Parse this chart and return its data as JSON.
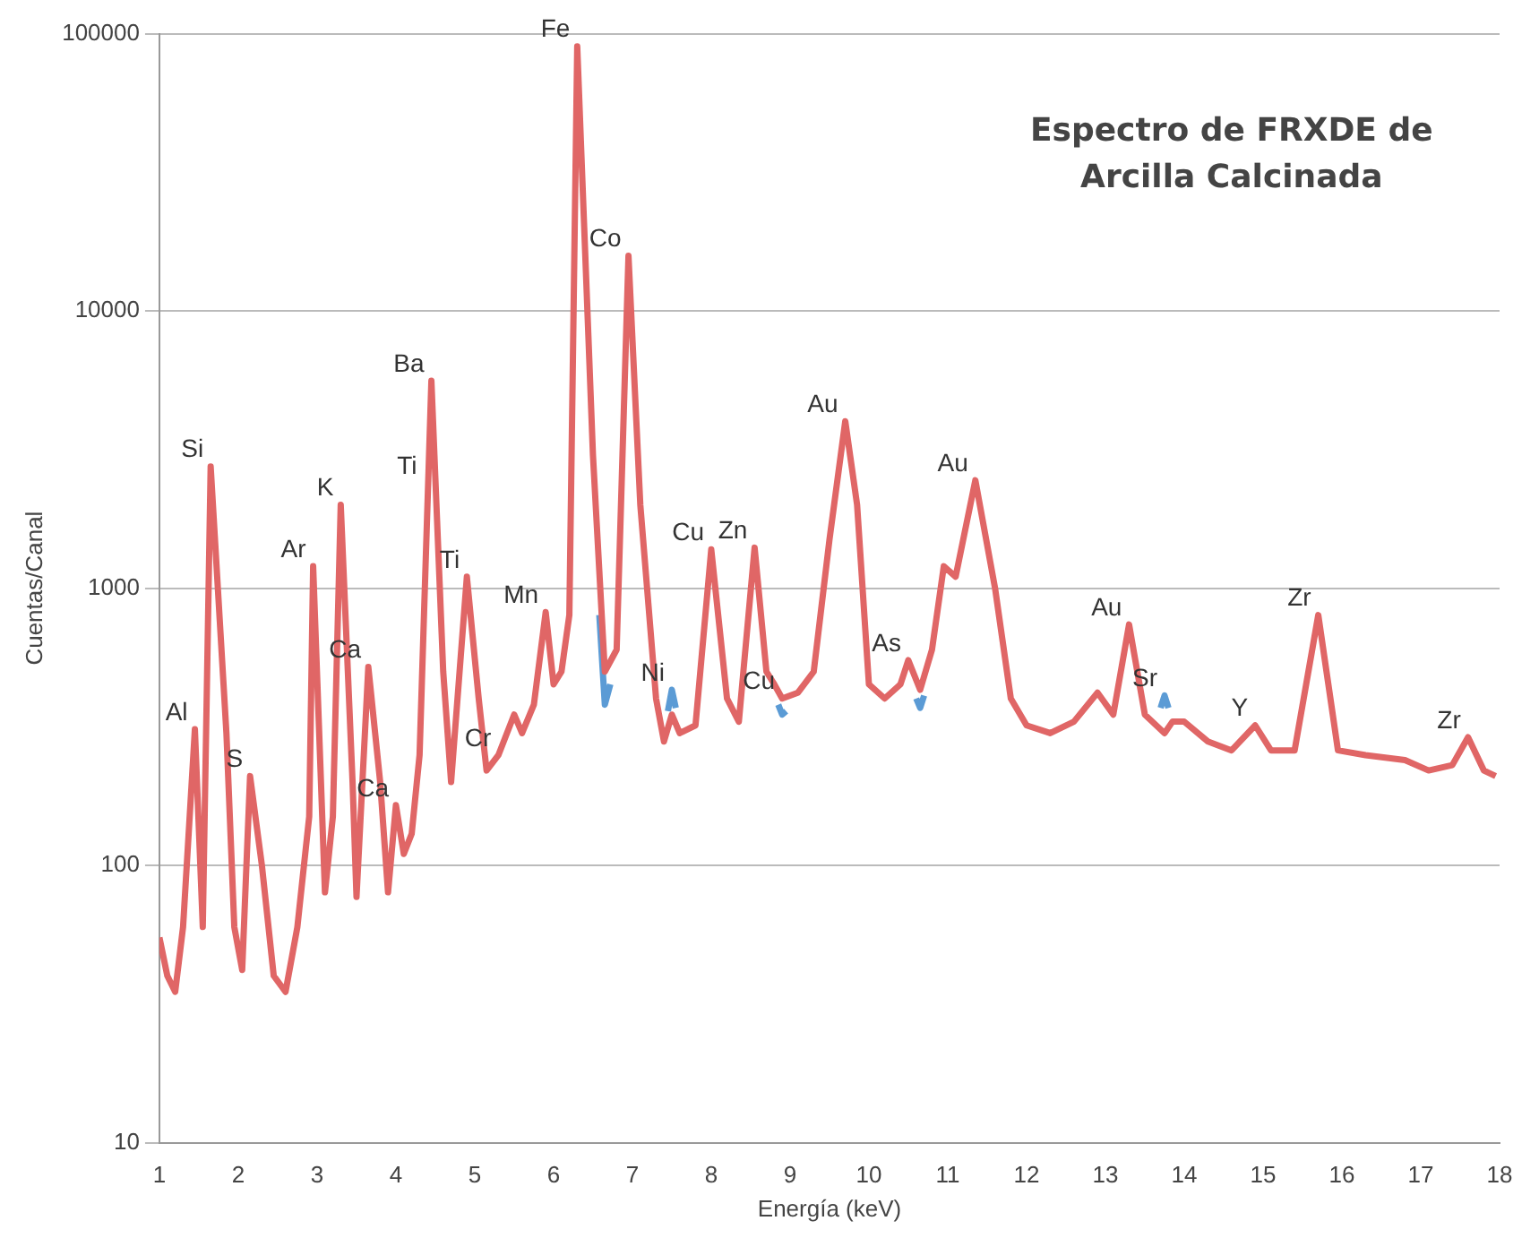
{
  "chart_data": {
    "type": "line",
    "title": "Espectro de FRXDE de\nArcilla Calcinada",
    "xlabel": "Energía (keV)",
    "ylabel": "Cuentas/Canal",
    "log": "y",
    "grid": "y",
    "legend": false,
    "marker": "none",
    "line_style": "solid",
    "xlim": [
      1,
      18
    ],
    "xticks": [
      1,
      2,
      3,
      4,
      5,
      6,
      7,
      8,
      9,
      10,
      11,
      12,
      13,
      14,
      15,
      16,
      17,
      18
    ],
    "ylim": [
      10,
      100000
    ],
    "yticks": [
      10,
      100,
      1000,
      10000,
      100000
    ],
    "x": [
      1.0,
      1.1,
      1.2,
      1.3,
      1.45,
      1.55,
      1.65,
      1.85,
      1.95,
      2.05,
      2.15,
      2.3,
      2.45,
      2.6,
      2.75,
      2.9,
      2.95,
      3.1,
      3.2,
      3.3,
      3.45,
      3.5,
      3.65,
      3.8,
      3.9,
      4.0,
      4.1,
      4.2,
      4.3,
      4.45,
      4.6,
      4.7,
      4.9,
      5.05,
      5.15,
      5.3,
      5.5,
      5.6,
      5.75,
      5.9,
      6.0,
      6.1,
      6.2,
      6.3,
      6.5,
      6.65,
      6.8,
      6.95,
      7.1,
      7.3,
      7.4,
      7.5,
      7.6,
      7.8,
      8.0,
      8.2,
      8.35,
      8.55,
      8.7,
      8.8,
      8.9,
      9.1,
      9.3,
      9.5,
      9.7,
      9.85,
      10.0,
      10.2,
      10.4,
      10.5,
      10.65,
      10.8,
      10.95,
      11.1,
      11.35,
      11.6,
      11.8,
      12.0,
      12.3,
      12.6,
      12.9,
      13.1,
      13.3,
      13.5,
      13.75,
      13.85,
      14.0,
      14.3,
      14.6,
      14.9,
      15.1,
      15.4,
      15.7,
      15.95,
      16.3,
      16.8,
      17.1,
      17.4,
      17.6,
      17.8,
      17.95
    ],
    "series": [
      {
        "color": "#5b9bd5",
        "x": [
          6.58,
          6.65,
          6.72,
          6.9,
          7.45,
          7.5,
          7.55,
          7.7,
          8.85,
          8.9,
          8.95,
          9.5,
          10.6,
          10.65,
          10.7,
          12,
          13.7,
          13.75,
          13.8
        ],
        "values": [
          800,
          380,
          450,
          null,
          360,
          430,
          370,
          null,
          380,
          350,
          360,
          null,
          400,
          370,
          410,
          null,
          370,
          410,
          370
        ]
      },
      {
        "color": "#e06666",
        "values": [
          55,
          40,
          35,
          60,
          310,
          60,
          2750,
          300,
          60,
          42,
          210,
          100,
          40,
          35,
          60,
          150,
          1200,
          80,
          150,
          2000,
          200,
          77,
          520,
          200,
          80,
          165,
          110,
          130,
          250,
          5600,
          500,
          200,
          1100,
          400,
          220,
          250,
          350,
          300,
          380,
          820,
          450,
          500,
          800,
          90000,
          3000,
          500,
          600,
          15800,
          2000,
          400,
          280,
          350,
          300,
          320,
          1380,
          400,
          330,
          1400,
          500,
          450,
          400,
          420,
          500,
          1500,
          4000,
          2000,
          450,
          400,
          450,
          550,
          430,
          600,
          1200,
          1100,
          2450,
          1000,
          400,
          320,
          300,
          330,
          420,
          350,
          740,
          350,
          300,
          330,
          330,
          280,
          260,
          320,
          260,
          260,
          800,
          260,
          250,
          240,
          220,
          230,
          290,
          220,
          210
        ]
      }
    ],
    "annotations": [
      {
        "text": "Al",
        "x": 1.45,
        "y": 310
      },
      {
        "text": "Si",
        "x": 1.65,
        "y": 2750
      },
      {
        "text": "S",
        "x": 2.15,
        "y": 210
      },
      {
        "text": "Ar",
        "x": 2.95,
        "y": 1200
      },
      {
        "text": "K",
        "x": 3.3,
        "y": 2000
      },
      {
        "text": "Ba",
        "x": 4.45,
        "y": 5600
      },
      {
        "text": "Ca",
        "x": 3.65,
        "y": 520
      },
      {
        "text": "Ca",
        "x": 4.0,
        "y": 165
      },
      {
        "text": "Ti",
        "x": 4.45,
        "y": 5600
      },
      {
        "text": "Ti",
        "x": 4.9,
        "y": 1100
      },
      {
        "text": "Cr",
        "x": 5.3,
        "y": 250
      },
      {
        "text": "Mn",
        "x": 5.9,
        "y": 820
      },
      {
        "text": "Fe",
        "x": 6.3,
        "y": 90000
      },
      {
        "text": "Co",
        "x": 6.95,
        "y": 15800
      },
      {
        "text": "Ni",
        "x": 7.5,
        "y": 430
      },
      {
        "text": "Cu",
        "x": 8.0,
        "y": 1380
      },
      {
        "text": "Zn",
        "x": 8.55,
        "y": 1400
      },
      {
        "text": "Cu",
        "x": 8.9,
        "y": 400
      },
      {
        "text": "Au",
        "x": 9.7,
        "y": 4000
      },
      {
        "text": "As",
        "x": 10.5,
        "y": 550
      },
      {
        "text": "Au",
        "x": 11.35,
        "y": 2450
      },
      {
        "text": "Au",
        "x": 13.3,
        "y": 740
      },
      {
        "text": "Sr",
        "x": 13.75,
        "y": 410
      },
      {
        "text": "Y",
        "x": 14.9,
        "y": 320
      },
      {
        "text": "Zr",
        "x": 15.7,
        "y": 800
      },
      {
        "text": "Zr",
        "x": 17.6,
        "y": 290
      }
    ]
  }
}
